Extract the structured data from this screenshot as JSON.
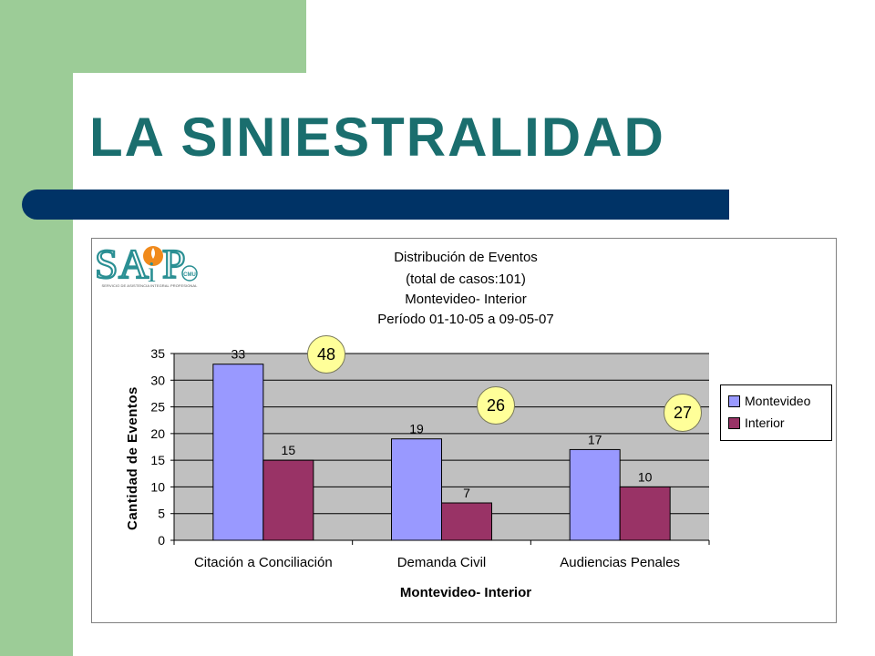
{
  "slide": {
    "title": "LA SINIESTRALIDAD"
  },
  "logo": {
    "name": "SAIP",
    "caption": "SERVICIO DE ASISTENCIA INTEGRAL PROFESIONAL",
    "badge": "CMU",
    "colors": {
      "teal": "#2a8f93",
      "orange": "#f08a1c"
    }
  },
  "chart_data": {
    "type": "bar",
    "title_lines": [
      "Distribución de Eventos",
      "(total de casos:101)",
      "Montevideo- Interior",
      "Período 01-10-05 a 09-05-07"
    ],
    "categories": [
      "Citación a Conciliación",
      "Demanda Civil",
      "Audiencias Penales"
    ],
    "series": [
      {
        "name": "Montevideo",
        "values": [
          33,
          19,
          17
        ],
        "color": "#9999ff"
      },
      {
        "name": "Interior",
        "values": [
          15,
          7,
          10
        ],
        "color": "#993366"
      }
    ],
    "category_totals": [
      48,
      26,
      27
    ],
    "xlabel": "Montevideo- Interior",
    "ylabel": "Cantidad de Eventos",
    "ylim": [
      0,
      35
    ],
    "yticks": [
      0,
      5,
      10,
      15,
      20,
      25,
      30,
      35
    ],
    "grid": true,
    "plot_background": "#c0c0c0",
    "legend_position": "right",
    "total_bubble_color": "#ffff99"
  }
}
